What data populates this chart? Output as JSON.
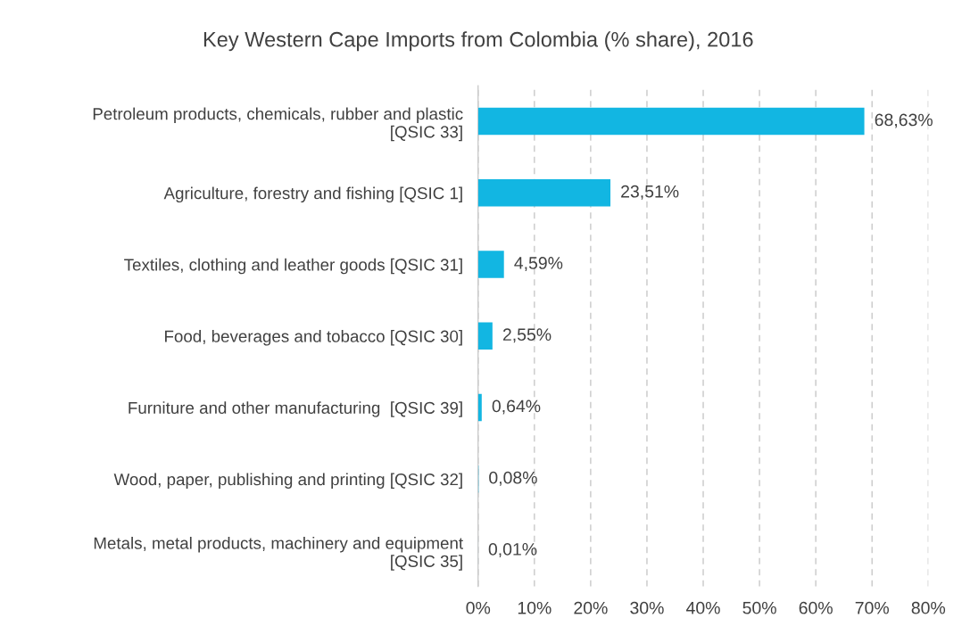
{
  "chart_data": {
    "type": "bar",
    "orientation": "horizontal",
    "title": "Key Western Cape Imports from Colombia (% share), 2016",
    "categories": [
      "Petroleum products, chemicals, rubber and plastic\n[QSIC 33]",
      "Agriculture, forestry and fishing [QSIC 1]",
      "Textiles, clothing and leather goods [QSIC 31]",
      "Food, beverages and tobacco [QSIC 30]",
      "Furniture and other manufacturing  [QSIC 39]",
      "Wood, paper, publishing and printing [QSIC 32]",
      "Metals, metal products, machinery and equipment\n[QSIC 35]"
    ],
    "values": [
      68.63,
      23.51,
      4.59,
      2.55,
      0.64,
      0.08,
      0.01
    ],
    "value_labels": [
      "68,63%",
      "23,51%",
      "4,59%",
      "2,55%",
      "0,64%",
      "0,08%",
      "0,01%"
    ],
    "color": "#12b6e2",
    "xlim": [
      0,
      80
    ],
    "xticks": [
      {
        "value": 0,
        "label": "0%"
      },
      {
        "value": 10,
        "label": "10%"
      },
      {
        "value": 20,
        "label": "20%"
      },
      {
        "value": 30,
        "label": "30%"
      },
      {
        "value": 40,
        "label": "40%"
      },
      {
        "value": 50,
        "label": "50%"
      },
      {
        "value": 60,
        "label": "60%"
      },
      {
        "value": 70,
        "label": "70%"
      },
      {
        "value": 80,
        "label": "80%"
      }
    ],
    "grid": "x"
  }
}
